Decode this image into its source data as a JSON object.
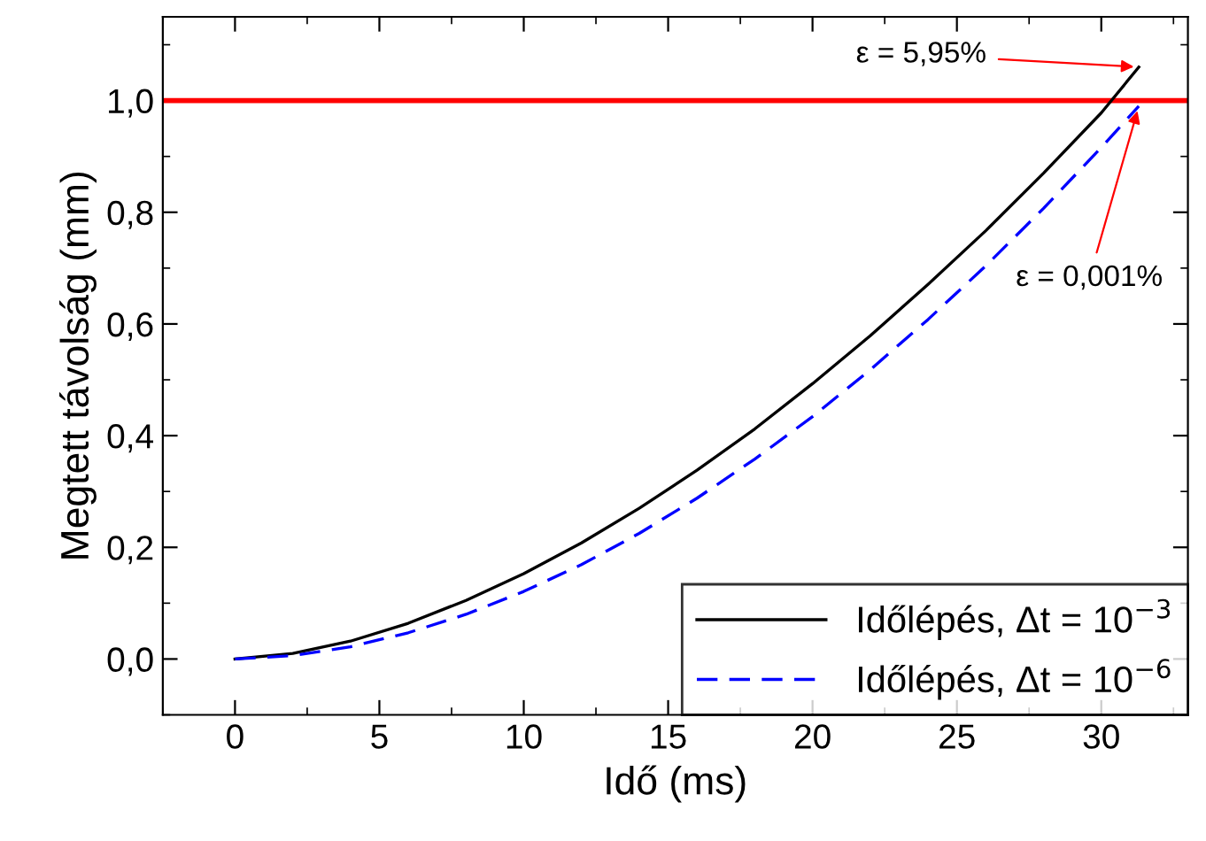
{
  "chart_data": {
    "type": "line",
    "xlabel": "Idő (ms)",
    "ylabel": "Megtett távolság (mm)",
    "x": [
      0,
      2,
      4,
      6,
      8,
      10,
      12,
      14,
      16,
      18,
      20,
      22,
      24,
      26,
      28,
      30,
      31.3
    ],
    "series": [
      {
        "name": "Időlépés, Δt = 10$^{−3}$",
        "color": "#000000",
        "line_style": "solid",
        "values": [
          0,
          0.01,
          0.032,
          0.064,
          0.105,
          0.153,
          0.208,
          0.27,
          0.338,
          0.412,
          0.493,
          0.579,
          0.671,
          0.767,
          0.87,
          0.978,
          1.06
        ]
      },
      {
        "name": "Időlépés, Δt = 10$^{−6}$",
        "color": "#0000ff",
        "line_style": "dashed",
        "values": [
          0,
          0.006,
          0.022,
          0.047,
          0.08,
          0.121,
          0.169,
          0.225,
          0.288,
          0.358,
          0.434,
          0.518,
          0.608,
          0.704,
          0.807,
          0.916,
          0.99
        ]
      }
    ],
    "xlim": [
      -2.5,
      33
    ],
    "xticks": [
      0,
      5,
      10,
      15,
      20,
      25,
      30
    ],
    "ylim": [
      -0.1,
      1.15
    ],
    "yticks": [
      {
        "value": 0,
        "label": "0,0"
      },
      {
        "value": 0.2,
        "label": "0,2"
      },
      {
        "value": 0.4,
        "label": "0,4"
      },
      {
        "value": 0.6,
        "label": "0,6"
      },
      {
        "value": 0.8,
        "label": "0,8"
      },
      {
        "value": 1.0,
        "label": "1,0"
      }
    ],
    "ref_lines": [
      {
        "axis": "y",
        "value": 1.0,
        "color": "#ff0000"
      }
    ],
    "annotations": [
      {
        "text": "ε = 5,95%",
        "x": 31.3,
        "y": 1.06
      },
      {
        "text": "ε = 0,001%",
        "x": 31.3,
        "y": 0.99
      }
    ],
    "legend": "bottom right",
    "grid": false,
    "marker": "none"
  }
}
